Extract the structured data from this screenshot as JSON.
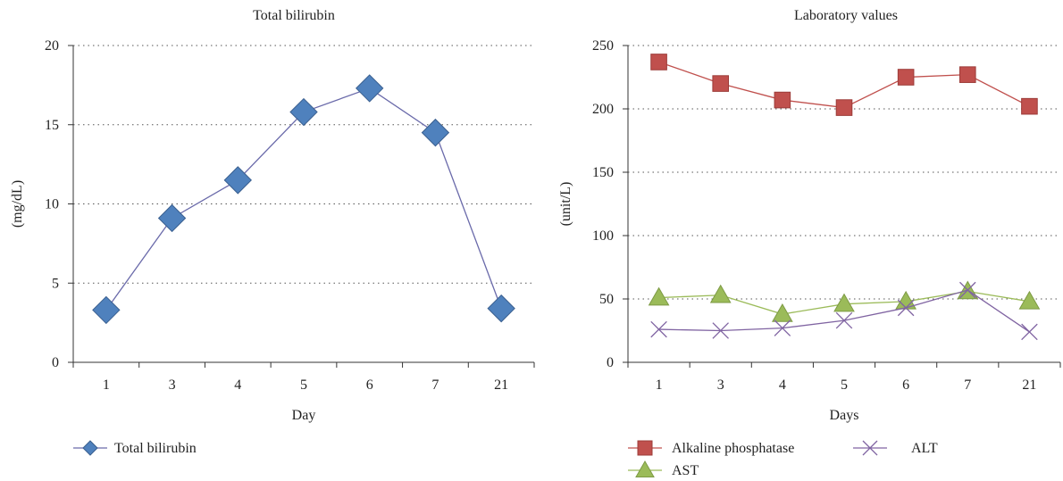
{
  "chart_data": [
    {
      "type": "line",
      "title": "Total bilirubin",
      "xlabel": "Day",
      "ylabel": "(mg/dL)",
      "categories": [
        "1",
        "3",
        "4",
        "5",
        "6",
        "7",
        "21"
      ],
      "ylim": [
        0,
        20
      ],
      "yticks": [
        0,
        5,
        10,
        15,
        20
      ],
      "grid": "horizontal dotted",
      "legend_position": "bottom-left",
      "series": [
        {
          "name": "Total bilirubin",
          "marker": "diamond",
          "line_color": "#6a6aaa",
          "marker_color": "#4f81bd",
          "values": [
            3.3,
            9.1,
            11.5,
            15.8,
            17.3,
            14.5,
            3.4
          ]
        }
      ]
    },
    {
      "type": "line",
      "title": "Laboratory values",
      "xlabel": "Days",
      "ylabel": "(unit/L)",
      "categories": [
        "1",
        "3",
        "4",
        "5",
        "6",
        "7",
        "21"
      ],
      "ylim": [
        0,
        250
      ],
      "yticks": [
        0,
        50,
        100,
        150,
        200,
        250
      ],
      "grid": "horizontal dotted",
      "legend_position": "bottom",
      "series": [
        {
          "name": "Alkaline phosphatase",
          "marker": "square",
          "line_color": "#c0504d",
          "marker_color": "#c0504d",
          "values": [
            237,
            220,
            207,
            201,
            225,
            227,
            202
          ]
        },
        {
          "name": "AST",
          "marker": "triangle",
          "line_color": "#9bbb59",
          "marker_color": "#9bbb59",
          "values": [
            51,
            53,
            38,
            46,
            48,
            56,
            48
          ]
        },
        {
          "name": "ALT",
          "marker": "x",
          "line_color": "#8064a2",
          "marker_color": "#8064a2",
          "values": [
            26,
            25,
            27,
            33,
            43,
            57,
            24
          ]
        }
      ]
    }
  ]
}
